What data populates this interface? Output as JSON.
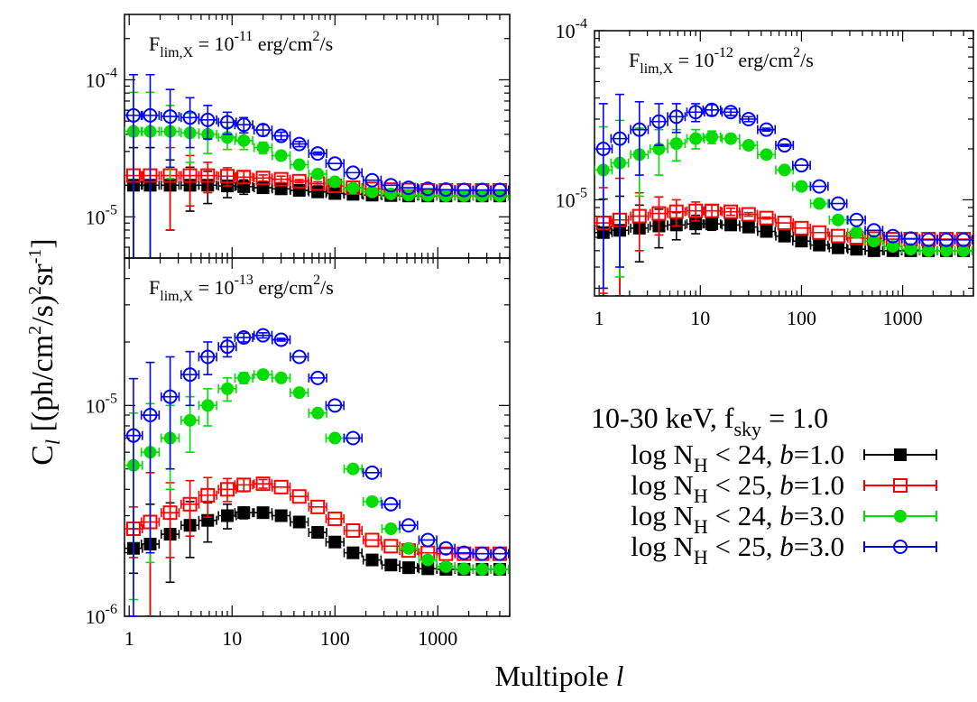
{
  "figure": {
    "ylabel_main": "C",
    "ylabel_sub": "l",
    "ylabel_rest_a": " [(ph/cm",
    "ylabel_sup1": "2",
    "ylabel_rest_b": "/s)",
    "ylabel_sup2": "2",
    "ylabel_rest_c": "sr",
    "ylabel_sup3": "-1",
    "ylabel_rest_d": "]",
    "xlabel_main": "Multipole ",
    "xlabel_ital": "l"
  },
  "legend": {
    "title_a": "10-30 keV, f",
    "title_sub": "sky",
    "title_b": " = 1.0",
    "entries": [
      {
        "pre": "log N",
        "sub": "H",
        "mid": " < 24, ",
        "b": "b",
        "post": "=1.0",
        "color": "#000000",
        "marker": "filled-square"
      },
      {
        "pre": "log N",
        "sub": "H",
        "mid": " < 25, ",
        "b": "b",
        "post": "=1.0",
        "color": "#ff0000",
        "marker": "open-square"
      },
      {
        "pre": "log N",
        "sub": "H",
        "mid": " < 24, ",
        "b": "b",
        "post": "=3.0",
        "color": "#00dd00",
        "marker": "filled-circle"
      },
      {
        "pre": "log N",
        "sub": "H",
        "mid": " < 25, ",
        "b": "b",
        "post": "=3.0",
        "color": "#0000ff",
        "marker": "open-circle"
      }
    ]
  },
  "chart_data": [
    {
      "type": "scatter",
      "title_pre": "F",
      "title_sub": "lim,X",
      "title_mid": " = 10",
      "title_sup": "-11",
      "title_post": " erg/cm",
      "title_sup2": "2",
      "title_end": "/s",
      "xscale": "log",
      "yscale": "log",
      "xlim": [
        0.9,
        5000
      ],
      "ylim": [
        5e-06,
        0.0003
      ],
      "x_ticks": [],
      "y_ticks": [
        {
          "base": "10",
          "exp": "-4",
          "v": 0.0001
        },
        {
          "base": "10",
          "exp": "-5",
          "v": 1e-05
        }
      ],
      "x": [
        1.1,
        1.6,
        2.5,
        3.9,
        5.8,
        9,
        13,
        20,
        30,
        45,
        68,
        100,
        150,
        230,
        350,
        520,
        800,
        1200,
        1800,
        2700,
        4000
      ],
      "series": [
        {
          "name": "log NH < 24, b=1.0",
          "values": [
            1.7e-05,
            1.7e-05,
            1.7e-05,
            1.7e-05,
            1.7e-05,
            1.68e-05,
            1.66e-05,
            1.63e-05,
            1.6e-05,
            1.56e-05,
            1.52e-05,
            1.48e-05,
            1.46e-05,
            1.44e-05,
            1.43e-05,
            1.42e-05,
            1.42e-05,
            1.42e-05,
            1.42e-05,
            1.42e-05,
            1.42e-05
          ],
          "err": [
            1.5e-05,
            1.5e-05,
            9e-06,
            6e-06,
            4.5e-06,
            3e-06,
            2e-06,
            1e-06,
            1e-06,
            5e-07,
            5e-07,
            0,
            0,
            0,
            0,
            0,
            0,
            0,
            0,
            0,
            0
          ]
        },
        {
          "name": "log NH < 25, b=1.0",
          "values": [
            2e-05,
            2e-05,
            2e-05,
            2e-05,
            2e-05,
            1.98e-05,
            1.95e-05,
            1.92e-05,
            1.88e-05,
            1.82e-05,
            1.75e-05,
            1.68e-05,
            1.63e-05,
            1.6e-05,
            1.58e-05,
            1.57e-05,
            1.56e-05,
            1.56e-05,
            1.56e-05,
            1.56e-05,
            1.56e-05
          ],
          "err": [
            1.9e-05,
            1.9e-05,
            1.2e-05,
            8e-06,
            5e-06,
            3e-06,
            2e-06,
            1e-06,
            1e-06,
            5e-07,
            5e-07,
            0,
            0,
            0,
            0,
            0,
            0,
            0,
            0,
            0,
            0
          ]
        },
        {
          "name": "log NH < 24, b=3.0",
          "values": [
            4.2e-05,
            4.2e-05,
            4.2e-05,
            4.1e-05,
            4e-05,
            3.8e-05,
            3.6e-05,
            3.2e-05,
            2.8e-05,
            2.4e-05,
            2.05e-05,
            1.8e-05,
            1.62e-05,
            1.52e-05,
            1.47e-05,
            1.44e-05,
            1.43e-05,
            1.42e-05,
            1.42e-05,
            1.42e-05,
            1.42e-05
          ],
          "err": [
            3.9e-05,
            3.9e-05,
            2.3e-05,
            1.6e-05,
            1.1e-05,
            7e-06,
            5e-06,
            3e-06,
            2e-06,
            1e-06,
            5e-07,
            0,
            0,
            0,
            0,
            0,
            0,
            0,
            0,
            0,
            0
          ]
        },
        {
          "name": "log NH < 25, b=3.0",
          "values": [
            5.5e-05,
            5.5e-05,
            5.4e-05,
            5.3e-05,
            5.1e-05,
            4.9e-05,
            4.7e-05,
            4.3e-05,
            3.9e-05,
            3.4e-05,
            2.9e-05,
            2.45e-05,
            2.1e-05,
            1.85e-05,
            1.7e-05,
            1.63e-05,
            1.6e-05,
            1.58e-05,
            1.57e-05,
            1.57e-05,
            1.57e-05
          ],
          "err": [
            5.4e-05,
            5.4e-05,
            3.1e-05,
            2.1e-05,
            1.4e-05,
            9e-06,
            6e-06,
            4e-06,
            2.5e-06,
            1.5e-06,
            7e-07,
            0,
            0,
            0,
            0,
            0,
            0,
            0,
            0,
            0,
            0
          ]
        }
      ]
    },
    {
      "type": "scatter",
      "title_pre": "F",
      "title_sub": "lim,X",
      "title_mid": " = 10",
      "title_sup": "-12",
      "title_post": " erg/cm",
      "title_sup2": "2",
      "title_end": "/s",
      "xscale": "log",
      "yscale": "log",
      "xlim": [
        0.9,
        5000
      ],
      "ylim": [
        2.7e-06,
        0.0001
      ],
      "x_ticks": [
        {
          "label": "1",
          "v": 1
        },
        {
          "label": "10",
          "v": 10
        },
        {
          "label": "100",
          "v": 100
        },
        {
          "label": "1000",
          "v": 1000
        }
      ],
      "y_ticks": [
        {
          "base": "10",
          "exp": "-4",
          "v": 0.0001
        },
        {
          "base": "10",
          "exp": "-5",
          "v": 1e-05
        }
      ],
      "x": [
        1.1,
        1.6,
        2.5,
        3.9,
        5.8,
        9,
        13,
        20,
        30,
        45,
        68,
        100,
        150,
        230,
        350,
        520,
        800,
        1200,
        1800,
        2700,
        4000
      ],
      "series": [
        {
          "name": "log NH < 24, b=1.0",
          "values": [
            6.4e-06,
            6.6e-06,
            6.8e-06,
            7e-06,
            7.1e-06,
            7.2e-06,
            7.2e-06,
            7.1e-06,
            6.9e-06,
            6.5e-06,
            6.1e-06,
            5.7e-06,
            5.4e-06,
            5.2e-06,
            5.1e-06,
            5e-06,
            5e-06,
            5e-06,
            5e-06,
            5e-06,
            5e-06
          ],
          "err": [
            3.7e-06,
            3.9e-06,
            2.5e-06,
            1.8e-06,
            1.3e-06,
            9e-07,
            6e-07,
            4e-07,
            2e-07,
            1e-07,
            0,
            0,
            0,
            0,
            0,
            0,
            0,
            0,
            0,
            0,
            0
          ]
        },
        {
          "name": "log NH < 25, b=1.0",
          "values": [
            7.3e-06,
            7.6e-06,
            8e-06,
            8.3e-06,
            8.5e-06,
            8.6e-06,
            8.6e-06,
            8.5e-06,
            8.2e-06,
            7.8e-06,
            7.3e-06,
            6.8e-06,
            6.4e-06,
            6.1e-06,
            5.95e-06,
            5.9e-06,
            5.85e-06,
            5.85e-06,
            5.85e-06,
            5.85e-06,
            5.85e-06
          ],
          "err": [
            4.5e-06,
            5.8e-06,
            3e-06,
            2.1e-06,
            1.5e-06,
            1.1e-06,
            7e-07,
            4e-07,
            2e-07,
            1e-07,
            0,
            0,
            0,
            0,
            0,
            0,
            0,
            0,
            0,
            0,
            0
          ]
        },
        {
          "name": "log NH < 24, b=3.0",
          "values": [
            1.5e-05,
            1.65e-05,
            1.85e-05,
            2e-05,
            2.15e-05,
            2.3e-05,
            2.35e-05,
            2.3e-05,
            2.1e-05,
            1.85e-05,
            1.5e-05,
            1.2e-05,
            9.5e-06,
            7.6e-06,
            6.4e-06,
            5.7e-06,
            5.3e-06,
            5.1e-06,
            5e-06,
            5e-06,
            5e-06
          ],
          "err": [
            1.2e-05,
            1.3e-05,
            8e-06,
            6e-06,
            4.5e-06,
            3e-06,
            2e-06,
            1.2e-06,
            8e-07,
            4e-07,
            2e-07,
            0,
            0,
            0,
            0,
            0,
            0,
            0,
            0,
            0,
            0
          ]
        },
        {
          "name": "log NH < 25, b=3.0",
          "values": [
            2e-05,
            2.3e-05,
            2.6e-05,
            2.9e-05,
            3.1e-05,
            3.3e-05,
            3.4e-05,
            3.3e-05,
            3e-05,
            2.6e-05,
            2.1e-05,
            1.6e-05,
            1.2e-05,
            9.5e-06,
            7.6e-06,
            6.6e-06,
            6.1e-06,
            5.9e-06,
            5.8e-06,
            5.8e-06,
            5.8e-06
          ],
          "err": [
            1.7e-05,
            1.9e-05,
            1.2e-05,
            8e-06,
            6e-06,
            4e-06,
            2.5e-06,
            1.5e-06,
            1e-06,
            5e-07,
            3e-07,
            0,
            0,
            0,
            0,
            0,
            0,
            0,
            0,
            0,
            0
          ]
        }
      ]
    },
    {
      "type": "scatter",
      "title_pre": "F",
      "title_sub": "lim,X",
      "title_mid": " = 10",
      "title_sup": "-13",
      "title_post": " erg/cm",
      "title_sup2": "2",
      "title_end": "/s",
      "xscale": "log",
      "yscale": "log",
      "xlim": [
        0.9,
        5000
      ],
      "ylim": [
        1e-06,
        5e-05
      ],
      "x_ticks": [
        {
          "label": "1",
          "v": 1
        },
        {
          "label": "10",
          "v": 10
        },
        {
          "label": "100",
          "v": 100
        },
        {
          "label": "1000",
          "v": 1000
        }
      ],
      "y_ticks": [
        {
          "base": "10",
          "exp": "-5",
          "v": 1e-05
        },
        {
          "base": "10",
          "exp": "-6",
          "v": 1e-06
        }
      ],
      "x": [
        1.1,
        1.6,
        2.5,
        3.9,
        5.8,
        9,
        13,
        20,
        30,
        45,
        68,
        100,
        150,
        230,
        350,
        520,
        800,
        1200,
        1800,
        2700,
        4000
      ],
      "series": [
        {
          "name": "log NH < 24, b=1.0",
          "values": [
            2.1e-06,
            2.2e-06,
            2.45e-06,
            2.7e-06,
            2.85e-06,
            3e-06,
            3.1e-06,
            3.1e-06,
            3e-06,
            2.8e-06,
            2.5e-06,
            2.25e-06,
            2e-06,
            1.85e-06,
            1.75e-06,
            1.7e-06,
            1.68e-06,
            1.67e-06,
            1.67e-06,
            1.67e-06,
            1.67e-06
          ],
          "err": [
            5e-07,
            1.2e-06,
            1e-06,
            8e-07,
            6e-07,
            4e-07,
            2e-07,
            1e-07,
            0,
            0,
            0,
            0,
            0,
            0,
            0,
            0,
            0,
            0,
            0,
            0,
            0
          ]
        },
        {
          "name": "log NH < 25, b=1.0",
          "values": [
            2.6e-06,
            2.8e-06,
            3.1e-06,
            3.4e-06,
            3.75e-06,
            4e-06,
            4.2e-06,
            4.25e-06,
            4.1e-06,
            3.7e-06,
            3.3e-06,
            2.9e-06,
            2.55e-06,
            2.3e-06,
            2.15e-06,
            2.05e-06,
            2e-06,
            1.98e-06,
            1.98e-06,
            1.98e-06,
            1.98e-06
          ],
          "err": [
            7e-07,
            2e-06,
            1.2e-06,
            1e-06,
            8e-07,
            5e-07,
            3e-07,
            2e-07,
            0,
            0,
            0,
            0,
            0,
            0,
            0,
            0,
            0,
            0,
            0,
            0,
            0
          ]
        },
        {
          "name": "log NH < 24, b=3.0",
          "values": [
            5.2e-06,
            6e-06,
            7e-06,
            8.5e-06,
            1e-05,
            1.2e-05,
            1.35e-05,
            1.4e-05,
            1.35e-05,
            1.15e-05,
            9.2e-06,
            7e-06,
            5e-06,
            3.5e-06,
            2.6e-06,
            2.1e-06,
            1.85e-06,
            1.72e-06,
            1.68e-06,
            1.67e-06,
            1.67e-06
          ],
          "err": [
            4e-06,
            4.2e-06,
            3e-06,
            2.5e-06,
            2e-06,
            1.5e-06,
            8e-07,
            4e-07,
            2e-07,
            0,
            0,
            0,
            0,
            0,
            0,
            0,
            0,
            0,
            0,
            0,
            0
          ]
        },
        {
          "name": "log NH < 25, b=3.0",
          "values": [
            7.2e-06,
            9e-06,
            1.1e-05,
            1.4e-05,
            1.7e-05,
            1.9e-05,
            2.1e-05,
            2.15e-05,
            2.05e-05,
            1.7e-05,
            1.35e-05,
            1e-05,
            7e-06,
            4.8e-06,
            3.4e-06,
            2.7e-06,
            2.3e-06,
            2.1e-06,
            2e-06,
            1.98e-06,
            1.98e-06
          ],
          "err": [
            6.2e-06,
            7e-06,
            6e-06,
            4e-06,
            3e-06,
            2e-06,
            1e-06,
            6e-07,
            3e-07,
            0,
            0,
            0,
            0,
            0,
            0,
            0,
            0,
            0,
            0,
            0,
            0
          ]
        }
      ]
    }
  ]
}
